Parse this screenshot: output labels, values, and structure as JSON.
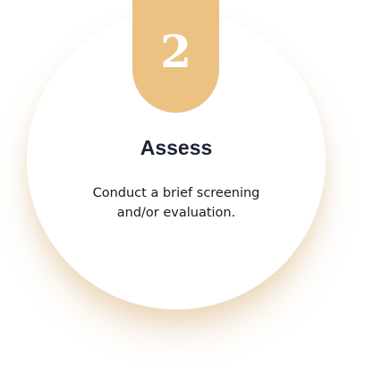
{
  "step": {
    "number": "2",
    "title": "Assess",
    "description": "Conduct a brief screening and/or evaluation."
  },
  "colors": {
    "accent": "#ecc283",
    "title": "#1e2235",
    "text": "#1a1a1a",
    "background": "#ffffff"
  }
}
